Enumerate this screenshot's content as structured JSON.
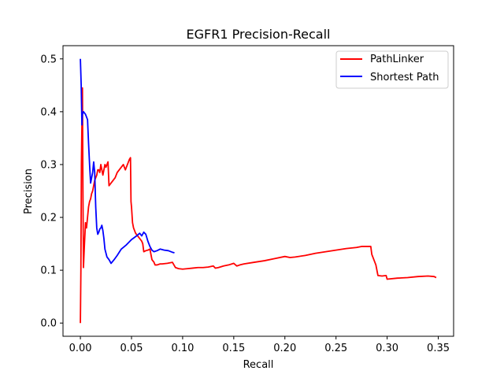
{
  "chart_data": {
    "type": "line",
    "title": "EGFR1 Precision-Recall",
    "xlabel": "Recall",
    "ylabel": "Precision",
    "xlim": [
      -0.017,
      0.365
    ],
    "ylim": [
      -0.025,
      0.525
    ],
    "xticks": [
      0.0,
      0.05,
      0.1,
      0.15,
      0.2,
      0.25,
      0.3,
      0.35
    ],
    "xtick_labels": [
      "0.00",
      "0.05",
      "0.10",
      "0.15",
      "0.20",
      "0.25",
      "0.30",
      "0.35"
    ],
    "yticks": [
      0.0,
      0.1,
      0.2,
      0.3,
      0.4,
      0.5
    ],
    "ytick_labels": [
      "0.0",
      "0.1",
      "0.2",
      "0.3",
      "0.4",
      "0.5"
    ],
    "grid": false,
    "legend": {
      "placement": "top-right"
    },
    "series": [
      {
        "name": "PathLinker",
        "color": "#ff0000",
        "points": [
          [
            0.0,
            0.0
          ],
          [
            0.0005,
            0.1
          ],
          [
            0.001,
            0.3
          ],
          [
            0.0015,
            0.375
          ],
          [
            0.002,
            0.445
          ],
          [
            0.0025,
            0.25
          ],
          [
            0.003,
            0.105
          ],
          [
            0.004,
            0.15
          ],
          [
            0.005,
            0.19
          ],
          [
            0.006,
            0.18
          ],
          [
            0.007,
            0.2
          ],
          [
            0.008,
            0.22
          ],
          [
            0.009,
            0.23
          ],
          [
            0.01,
            0.235
          ],
          [
            0.011,
            0.245
          ],
          [
            0.012,
            0.25
          ],
          [
            0.013,
            0.26
          ],
          [
            0.014,
            0.27
          ],
          [
            0.015,
            0.275
          ],
          [
            0.016,
            0.28
          ],
          [
            0.017,
            0.29
          ],
          [
            0.018,
            0.29
          ],
          [
            0.019,
            0.285
          ],
          [
            0.02,
            0.3
          ],
          [
            0.021,
            0.29
          ],
          [
            0.022,
            0.28
          ],
          [
            0.023,
            0.29
          ],
          [
            0.024,
            0.3
          ],
          [
            0.025,
            0.295
          ],
          [
            0.026,
            0.3
          ],
          [
            0.027,
            0.305
          ],
          [
            0.028,
            0.26
          ],
          [
            0.03,
            0.265
          ],
          [
            0.032,
            0.27
          ],
          [
            0.034,
            0.275
          ],
          [
            0.036,
            0.285
          ],
          [
            0.038,
            0.29
          ],
          [
            0.04,
            0.295
          ],
          [
            0.042,
            0.3
          ],
          [
            0.044,
            0.29
          ],
          [
            0.045,
            0.295
          ],
          [
            0.046,
            0.3
          ],
          [
            0.047,
            0.305
          ],
          [
            0.048,
            0.31
          ],
          [
            0.049,
            0.313
          ],
          [
            0.0495,
            0.23
          ],
          [
            0.05,
            0.22
          ],
          [
            0.051,
            0.19
          ],
          [
            0.052,
            0.18
          ],
          [
            0.053,
            0.175
          ],
          [
            0.054,
            0.17
          ],
          [
            0.056,
            0.165
          ],
          [
            0.058,
            0.16
          ],
          [
            0.06,
            0.155
          ],
          [
            0.061,
            0.15
          ],
          [
            0.062,
            0.135
          ],
          [
            0.064,
            0.137
          ],
          [
            0.066,
            0.138
          ],
          [
            0.068,
            0.14
          ],
          [
            0.07,
            0.12
          ],
          [
            0.072,
            0.115
          ],
          [
            0.073,
            0.11
          ],
          [
            0.075,
            0.11
          ],
          [
            0.078,
            0.112
          ],
          [
            0.08,
            0.112
          ],
          [
            0.085,
            0.113
          ],
          [
            0.09,
            0.115
          ],
          [
            0.093,
            0.105
          ],
          [
            0.096,
            0.103
          ],
          [
            0.1,
            0.102
          ],
          [
            0.105,
            0.103
          ],
          [
            0.11,
            0.104
          ],
          [
            0.115,
            0.105
          ],
          [
            0.12,
            0.105
          ],
          [
            0.125,
            0.106
          ],
          [
            0.13,
            0.108
          ],
          [
            0.132,
            0.104
          ],
          [
            0.135,
            0.105
          ],
          [
            0.14,
            0.108
          ],
          [
            0.145,
            0.11
          ],
          [
            0.15,
            0.113
          ],
          [
            0.153,
            0.108
          ],
          [
            0.156,
            0.11
          ],
          [
            0.16,
            0.112
          ],
          [
            0.17,
            0.115
          ],
          [
            0.18,
            0.118
          ],
          [
            0.19,
            0.122
          ],
          [
            0.2,
            0.126
          ],
          [
            0.205,
            0.124
          ],
          [
            0.21,
            0.125
          ],
          [
            0.22,
            0.128
          ],
          [
            0.23,
            0.132
          ],
          [
            0.24,
            0.135
          ],
          [
            0.25,
            0.138
          ],
          [
            0.26,
            0.141
          ],
          [
            0.27,
            0.143
          ],
          [
            0.275,
            0.145
          ],
          [
            0.28,
            0.145
          ],
          [
            0.284,
            0.145
          ],
          [
            0.285,
            0.13
          ],
          [
            0.287,
            0.12
          ],
          [
            0.289,
            0.11
          ],
          [
            0.291,
            0.09
          ],
          [
            0.295,
            0.089
          ],
          [
            0.299,
            0.09
          ],
          [
            0.3,
            0.083
          ],
          [
            0.31,
            0.085
          ],
          [
            0.32,
            0.086
          ],
          [
            0.33,
            0.088
          ],
          [
            0.34,
            0.089
          ],
          [
            0.346,
            0.088
          ],
          [
            0.348,
            0.086
          ]
        ]
      },
      {
        "name": "Shortest Path",
        "color": "#0000ff",
        "points": [
          [
            0.0,
            0.5
          ],
          [
            0.0008,
            0.45
          ],
          [
            0.0015,
            0.375
          ],
          [
            0.002,
            0.395
          ],
          [
            0.003,
            0.4
          ],
          [
            0.005,
            0.395
          ],
          [
            0.007,
            0.385
          ],
          [
            0.008,
            0.34
          ],
          [
            0.009,
            0.3
          ],
          [
            0.01,
            0.265
          ],
          [
            0.011,
            0.275
          ],
          [
            0.012,
            0.285
          ],
          [
            0.013,
            0.305
          ],
          [
            0.014,
            0.285
          ],
          [
            0.015,
            0.22
          ],
          [
            0.016,
            0.18
          ],
          [
            0.017,
            0.168
          ],
          [
            0.018,
            0.172
          ],
          [
            0.019,
            0.178
          ],
          [
            0.02,
            0.18
          ],
          [
            0.021,
            0.185
          ],
          [
            0.022,
            0.175
          ],
          [
            0.023,
            0.16
          ],
          [
            0.024,
            0.14
          ],
          [
            0.026,
            0.125
          ],
          [
            0.028,
            0.12
          ],
          [
            0.03,
            0.113
          ],
          [
            0.033,
            0.12
          ],
          [
            0.036,
            0.128
          ],
          [
            0.04,
            0.14
          ],
          [
            0.045,
            0.148
          ],
          [
            0.05,
            0.158
          ],
          [
            0.055,
            0.165
          ],
          [
            0.058,
            0.17
          ],
          [
            0.06,
            0.165
          ],
          [
            0.062,
            0.172
          ],
          [
            0.064,
            0.168
          ],
          [
            0.066,
            0.155
          ],
          [
            0.068,
            0.145
          ],
          [
            0.07,
            0.138
          ],
          [
            0.072,
            0.135
          ],
          [
            0.075,
            0.137
          ],
          [
            0.078,
            0.14
          ],
          [
            0.082,
            0.138
          ],
          [
            0.086,
            0.137
          ],
          [
            0.09,
            0.134
          ],
          [
            0.092,
            0.133
          ]
        ]
      }
    ]
  }
}
